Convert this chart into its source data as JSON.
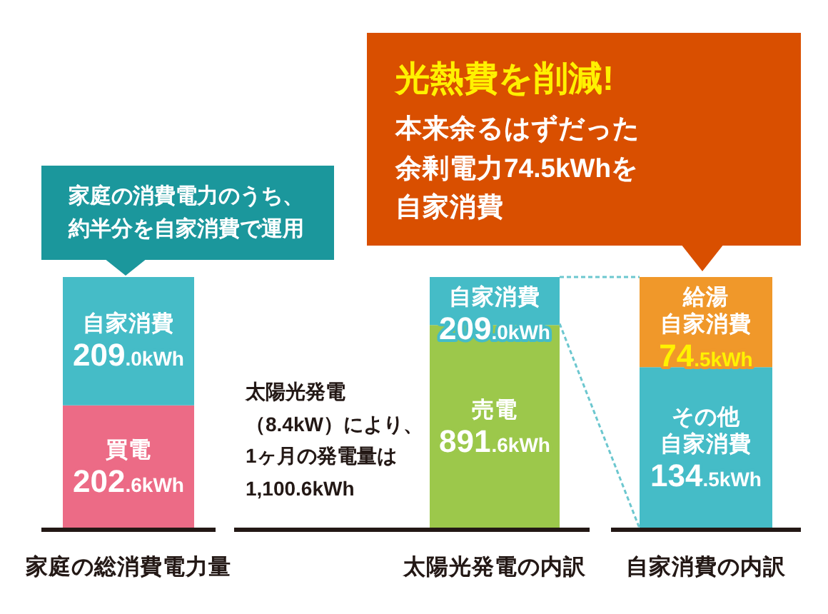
{
  "chart_data": [
    {
      "type": "bar",
      "stacked": true,
      "tick_labels": "x",
      "categories": [
        "家庭の総消費電力量"
      ],
      "series": [
        {
          "name": "買電",
          "color": "#ec6b86",
          "values": [
            202.6
          ],
          "value_labels": [
            "202.6kWh"
          ]
        },
        {
          "name": "自家消費",
          "color": "#45bcc7",
          "values": [
            209.0
          ],
          "value_labels": [
            "209.0kWh"
          ]
        }
      ],
      "annotations": [
        "家庭の消費電力のうち、約半分を自家消費で運用"
      ]
    },
    {
      "type": "bar",
      "stacked": true,
      "tick_labels": "x",
      "categories": [
        "太陽光発電の内訳"
      ],
      "series": [
        {
          "name": "売電",
          "color": "#9cc84b",
          "values": [
            891.6
          ],
          "value_labels": [
            "891.6kWh"
          ]
        },
        {
          "name": "自家消費",
          "color": "#45bcc7",
          "values": [
            209.0
          ],
          "value_labels": [
            "209.0kWh"
          ]
        }
      ],
      "annotations": [
        "太陽光発電（8.4kW）により、1ヶ月の発電量は1,100.6kWh"
      ]
    },
    {
      "type": "bar",
      "stacked": true,
      "tick_labels": "x",
      "categories": [
        "自家消費の内訳"
      ],
      "series": [
        {
          "name": "その他自家消費",
          "color": "#45bcc7",
          "values": [
            134.5
          ],
          "value_labels": [
            "134.5kWh"
          ]
        },
        {
          "name": "給湯自家消費",
          "color": "#f0982a",
          "values": [
            74.5
          ],
          "value_labels": [
            "74.5kWh"
          ]
        }
      ],
      "annotations": [
        "光熱費を削減!",
        "本来余るはずだった余剰電力74.5kWhを自家消費"
      ]
    }
  ]
}
